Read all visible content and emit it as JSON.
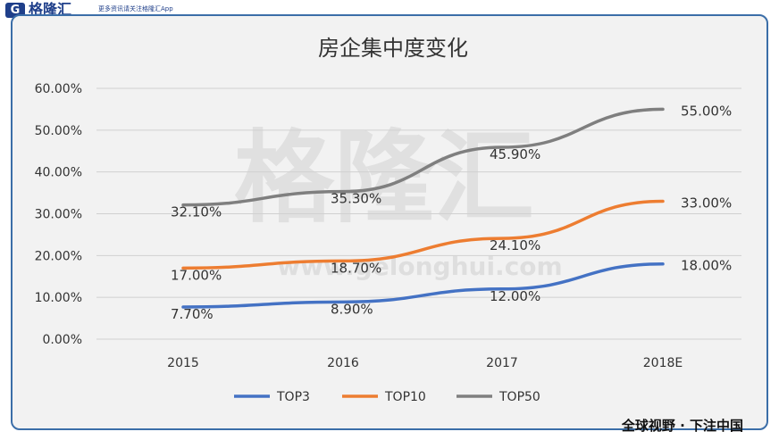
{
  "brand": {
    "logo_glyph": "G",
    "name": "格隆汇",
    "tagline": "更多资讯请关注格隆汇App"
  },
  "watermark": {
    "text": "格隆汇",
    "url": "www.gelonghui.com"
  },
  "footer": {
    "slogan": "全球视野 · 下注中国"
  },
  "chart_data": {
    "type": "line",
    "title": "房企集中度变化",
    "categories": [
      "2015",
      "2016",
      "2017",
      "2018E"
    ],
    "series": [
      {
        "name": "TOP3",
        "color": "#4472c4",
        "values": [
          7.7,
          8.9,
          12.0,
          18.0
        ],
        "labels": [
          "7.70%",
          "8.90%",
          "12.00%",
          "18.00%"
        ]
      },
      {
        "name": "TOP10",
        "color": "#ed7d31",
        "values": [
          17.0,
          18.7,
          24.1,
          33.0
        ],
        "labels": [
          "17.00%",
          "18.70%",
          "24.10%",
          "33.00%"
        ]
      },
      {
        "name": "TOP50",
        "color": "#7f7f7f",
        "values": [
          32.1,
          35.3,
          45.9,
          55.0
        ],
        "labels": [
          "32.10%",
          "35.30%",
          "45.90%",
          "55.00%"
        ]
      }
    ],
    "ylim": [
      0,
      60
    ],
    "yticks": [
      "0.00%",
      "10.00%",
      "20.00%",
      "30.00%",
      "40.00%",
      "50.00%",
      "60.00%"
    ],
    "grid": true,
    "legend": "bottom"
  }
}
